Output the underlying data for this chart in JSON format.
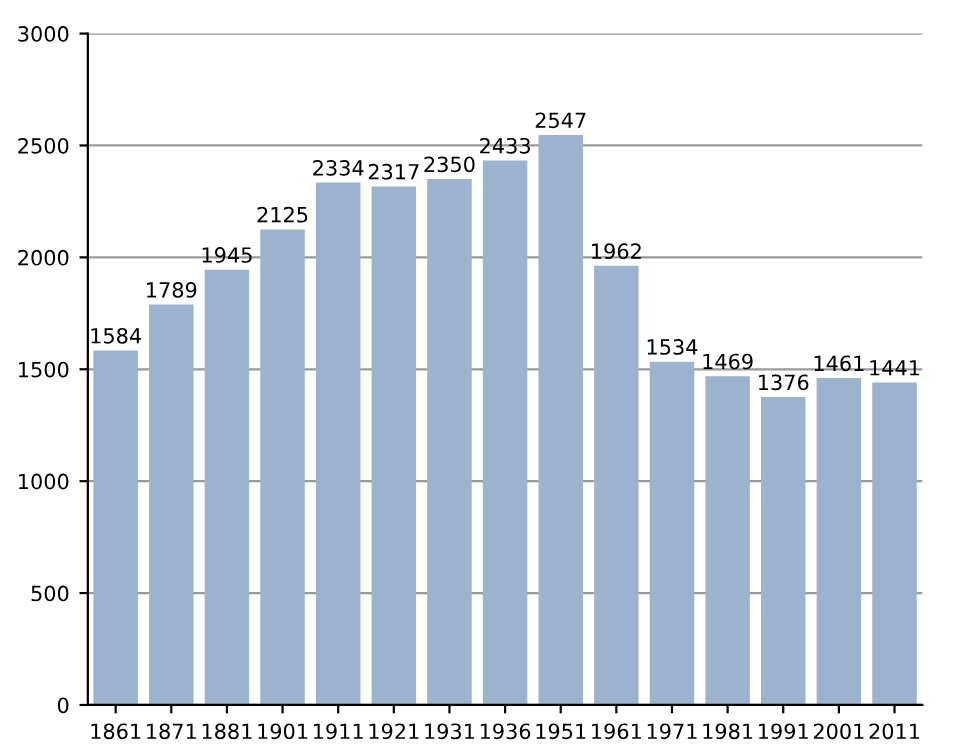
{
  "chart_data": {
    "type": "bar",
    "categories": [
      "1861",
      "1871",
      "1881",
      "1901",
      "1911",
      "1921",
      "1931",
      "1936",
      "1951",
      "1961",
      "1971",
      "1981",
      "1991",
      "2001",
      "2011"
    ],
    "values": [
      1584,
      1789,
      1945,
      2125,
      2334,
      2317,
      2350,
      2433,
      2547,
      1962,
      1534,
      1469,
      1376,
      1461,
      1441
    ],
    "color": "#9cb3cf",
    "ylim": [
      0,
      3000
    ],
    "yticks": [
      0,
      500,
      1000,
      1500,
      2000,
      2500,
      3000
    ],
    "grid": "y",
    "data_labels": true
  }
}
